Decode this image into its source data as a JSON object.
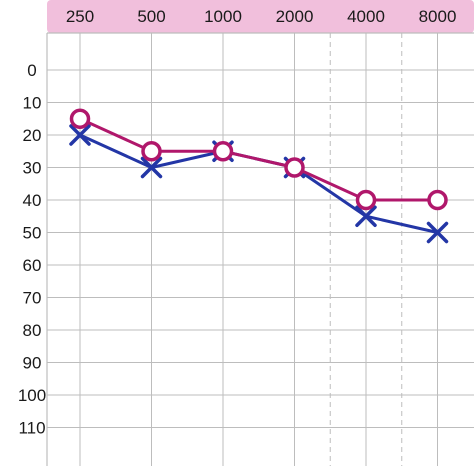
{
  "chart_data": {
    "type": "line",
    "x": [
      "250",
      "500",
      "1000",
      "2000",
      "4000",
      "8000"
    ],
    "y_ticks": [
      "0",
      "10",
      "20",
      "30",
      "40",
      "50",
      "60",
      "70",
      "80",
      "90",
      "100",
      "110"
    ],
    "ylim": [
      -5,
      120
    ],
    "y_inverted": true,
    "x_axis_position": "top",
    "grid": true,
    "dashed_gridlines_at": [
      "4000",
      "8000"
    ],
    "series": [
      {
        "marker": "circle",
        "color": "#b0176b",
        "values": [
          15,
          25,
          25,
          30,
          40,
          40
        ]
      },
      {
        "marker": "cross",
        "color": "#2336a6",
        "values": [
          20,
          30,
          25,
          30,
          45,
          50
        ]
      }
    ],
    "header_band_color": "#f1bfdc",
    "grid_color": "#bdbdbd"
  }
}
